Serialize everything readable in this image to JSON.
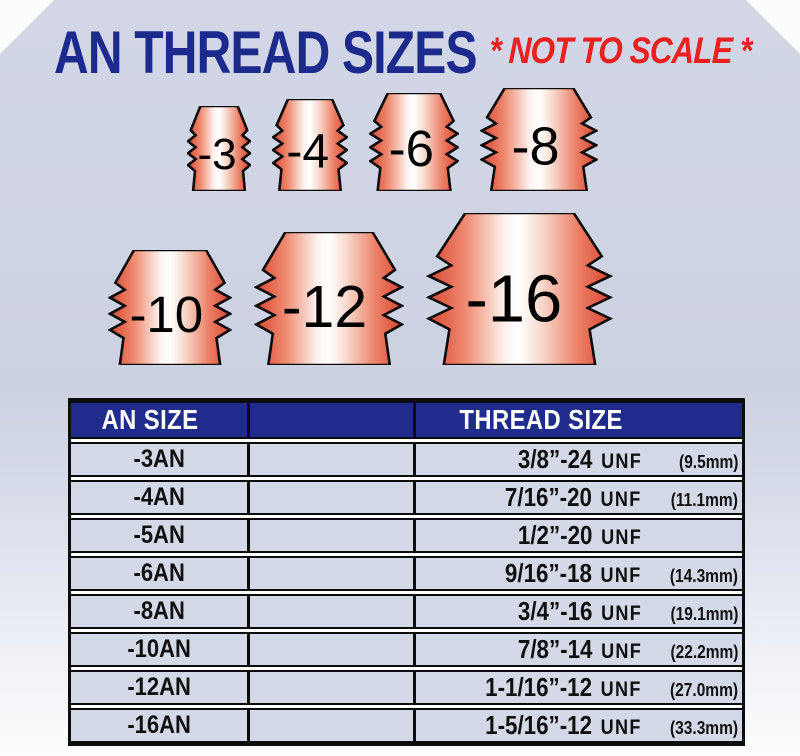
{
  "title": "AN THREAD SIZES",
  "subtitle": "* NOT TO SCALE *",
  "colors": {
    "panel_bg": "#cfd4e4",
    "header_blue": "#202c8d",
    "row_bg": "#d4d9e7",
    "title_navy": "#1b2a8c",
    "subtitle_red": "#e82120",
    "fitting_edge_red": "#da4631",
    "fitting_mid_red": "#ef8a70",
    "fitting_center": "#ffffff",
    "border_black": "#0c0c0c"
  },
  "fittings": {
    "rows": [
      [
        {
          "label": "-3",
          "w": 64,
          "h": 85
        },
        {
          "label": "-4",
          "w": 76,
          "h": 92
        },
        {
          "label": "-6",
          "w": 90,
          "h": 98
        },
        {
          "label": "-8",
          "w": 118,
          "h": 103
        }
      ],
      [
        {
          "label": "-10",
          "w": 124,
          "h": 115
        },
        {
          "label": "-12",
          "w": 150,
          "h": 133
        },
        {
          "label": "-16",
          "w": 187,
          "h": 152
        }
      ]
    ]
  },
  "table": {
    "header": {
      "an_size": "AN SIZE",
      "spacer": "",
      "thread_size": "THREAD SIZE"
    },
    "rows": [
      {
        "an": "-3AN",
        "thread": "3/8”-24",
        "unf": "UNF",
        "mm": "(9.5mm)"
      },
      {
        "an": "-4AN",
        "thread": "7/16”-20",
        "unf": "UNF",
        "mm": "(11.1mm)"
      },
      {
        "an": "-5AN",
        "thread": "1/2”-20",
        "unf": "UNF",
        "mm": ""
      },
      {
        "an": "-6AN",
        "thread": "9/16”-18",
        "unf": "UNF",
        "mm": "(14.3mm)"
      },
      {
        "an": "-8AN",
        "thread": "3/4”-16",
        "unf": "UNF",
        "mm": "(19.1mm)"
      },
      {
        "an": "-10AN",
        "thread": "7/8”-14",
        "unf": "UNF",
        "mm": "(22.2mm)"
      },
      {
        "an": "-12AN",
        "thread": "1-1/16”-12",
        "unf": "UNF",
        "mm": "(27.0mm)"
      },
      {
        "an": "-16AN",
        "thread": "1-5/16”-12",
        "unf": "UNF",
        "mm": "(33.3mm)"
      }
    ]
  }
}
